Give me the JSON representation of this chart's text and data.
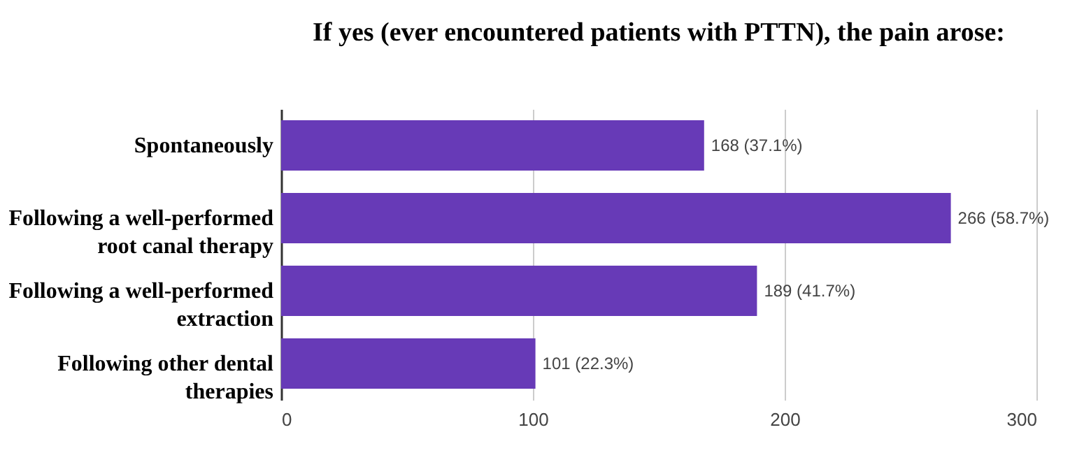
{
  "chart_data": {
    "type": "bar",
    "orientation": "horizontal",
    "title": "If yes (ever encountered patients with PTTN), the pain arose:",
    "categories": [
      "Spontaneously",
      "Following a well-performed root canal therapy",
      "Following a well-performed extraction",
      "Following other dental therapies"
    ],
    "values": [
      168,
      266,
      189,
      101
    ],
    "value_labels": [
      "168 (37.1%)",
      "266 (58.7%)",
      "189 (41.7%)",
      "101 (22.3%)"
    ],
    "color": "#673ab7",
    "xlim": [
      0,
      300
    ],
    "xticks": [
      0,
      100,
      200,
      300
    ],
    "grid": "x"
  }
}
